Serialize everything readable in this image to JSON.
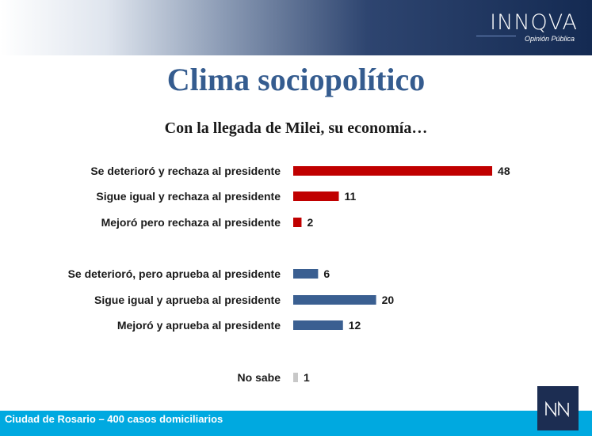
{
  "header": {
    "brand_name": "INNQVA",
    "brand_sub": "Opinión Pública"
  },
  "title": "Clima sociopolítico",
  "subtitle": "Con la llegada de Milei, su economía…",
  "footer": {
    "text": "Ciudad de Rosario – 400 casos domiciliarios"
  },
  "colors": {
    "rechaza": "#c00000",
    "aprueba": "#3a5f91",
    "no_sabe": "#c8c8c8",
    "title": "#355c8f",
    "footer": "#00a9e0"
  },
  "chart_data": {
    "type": "bar",
    "orientation": "horizontal",
    "title": "",
    "xlabel": "",
    "ylabel": "",
    "grid": false,
    "categories": [
      "Se deterioró y rechaza al presidente",
      "Sigue igual y rechaza al presidente",
      "Mejoró pero rechaza al presidente",
      "Se deterioró, pero aprueba al presidente",
      "Sigue igual y aprueba al presidente",
      "Mejoró y aprueba al presidente",
      "No sabe"
    ],
    "values": [
      48,
      11,
      2,
      6,
      20,
      12,
      1
    ],
    "groups": [
      "rechaza",
      "rechaza",
      "rechaza",
      "aprueba",
      "aprueba",
      "aprueba",
      "no_sabe"
    ]
  }
}
